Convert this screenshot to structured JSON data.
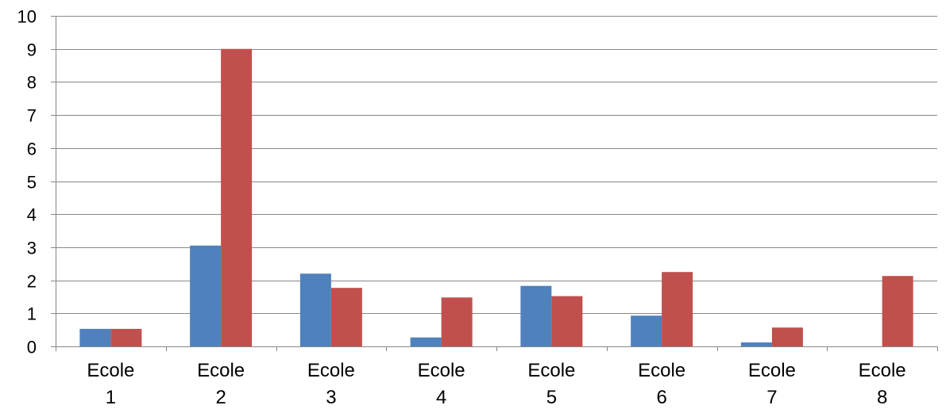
{
  "chart_data": {
    "type": "bar",
    "title": "",
    "xlabel": "",
    "ylabel": "",
    "categories": [
      [
        "Ecole",
        "1"
      ],
      [
        "Ecole",
        "2"
      ],
      [
        "Ecole",
        "3"
      ],
      [
        "Ecole",
        "4"
      ],
      [
        "Ecole",
        "5"
      ],
      [
        "Ecole",
        "6"
      ],
      [
        "Ecole",
        "7"
      ],
      [
        "Ecole",
        "8"
      ]
    ],
    "series": [
      {
        "color": "#4F81BD",
        "values": [
          0.53,
          3.05,
          2.2,
          0.27,
          1.83,
          0.93,
          0.12,
          0
        ]
      },
      {
        "color": "#C0504D",
        "values": [
          0.53,
          9.0,
          1.77,
          1.48,
          1.52,
          2.25,
          0.57,
          2.13
        ]
      }
    ],
    "ylim": [
      0,
      10
    ],
    "yticks": [
      "0",
      "1",
      "2",
      "3",
      "4",
      "5",
      "6",
      "7",
      "8",
      "9",
      "10"
    ],
    "grid": true,
    "legend": "none"
  }
}
